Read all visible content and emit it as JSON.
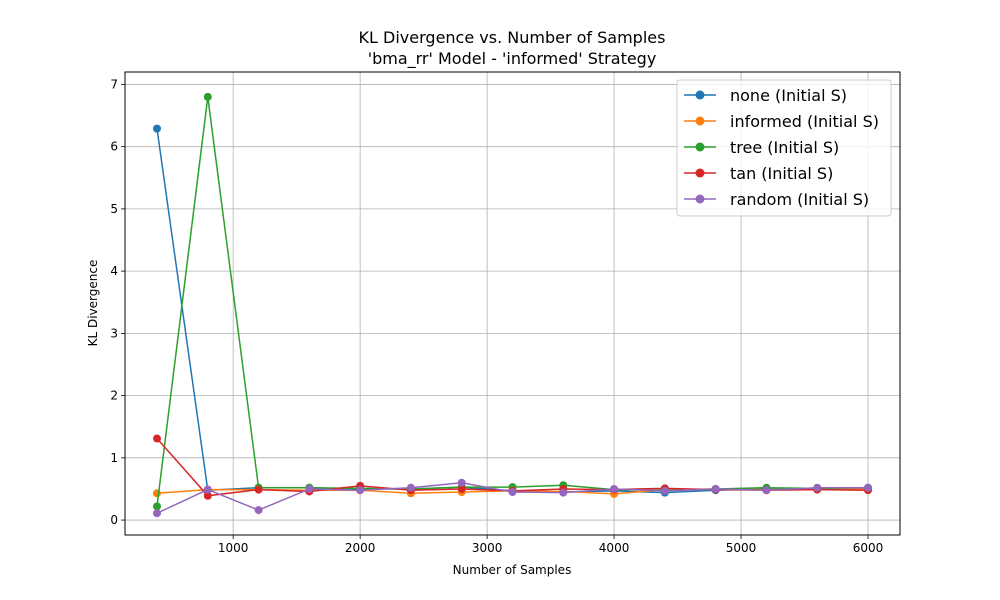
{
  "chart_data": {
    "type": "line",
    "title": "KL Divergence vs. Number of Samples",
    "subtitle": "'bma_rr' Model - 'informed' Strategy",
    "xlabel": "Number of Samples",
    "ylabel": "KL Divergence",
    "xlim": [
      148,
      6252
    ],
    "ylim": [
      -0.24,
      7.2
    ],
    "xticks": [
      1000,
      2000,
      3000,
      4000,
      5000,
      6000
    ],
    "yticks": [
      0,
      1,
      2,
      3,
      4,
      5,
      6,
      7
    ],
    "grid": true,
    "legend_position": "top-right",
    "x": [
      400,
      800,
      1200,
      1600,
      2000,
      2400,
      2800,
      3200,
      3600,
      4000,
      4400,
      4800,
      5200,
      5600,
      6000
    ],
    "series": [
      {
        "name": "none (Initial S)",
        "color": "#1f77b4",
        "values": [
          6.29,
          0.48,
          0.52,
          0.52,
          0.5,
          0.5,
          0.53,
          0.47,
          0.45,
          0.47,
          0.44,
          0.48,
          0.5,
          0.51,
          0.51
        ]
      },
      {
        "name": "informed (Initial S)",
        "color": "#ff7f0e",
        "values": [
          0.43,
          0.49,
          0.49,
          0.48,
          0.48,
          0.43,
          0.45,
          0.47,
          0.46,
          0.42,
          0.49,
          0.5,
          0.49,
          0.5,
          0.5
        ]
      },
      {
        "name": "tree (Initial S)",
        "color": "#2ca02c",
        "values": [
          0.22,
          6.8,
          0.52,
          0.52,
          0.51,
          0.5,
          0.53,
          0.53,
          0.56,
          0.49,
          0.48,
          0.5,
          0.52,
          0.51,
          0.52
        ]
      },
      {
        "name": "tan (Initial S)",
        "color": "#d62728",
        "values": [
          1.31,
          0.39,
          0.49,
          0.46,
          0.55,
          0.48,
          0.5,
          0.47,
          0.5,
          0.49,
          0.51,
          0.49,
          0.48,
          0.49,
          0.48
        ]
      },
      {
        "name": "random (Initial S)",
        "color": "#9467bd",
        "values": [
          0.11,
          0.49,
          0.16,
          0.5,
          0.48,
          0.52,
          0.6,
          0.45,
          0.44,
          0.5,
          0.47,
          0.5,
          0.48,
          0.52,
          0.52
        ]
      }
    ]
  }
}
